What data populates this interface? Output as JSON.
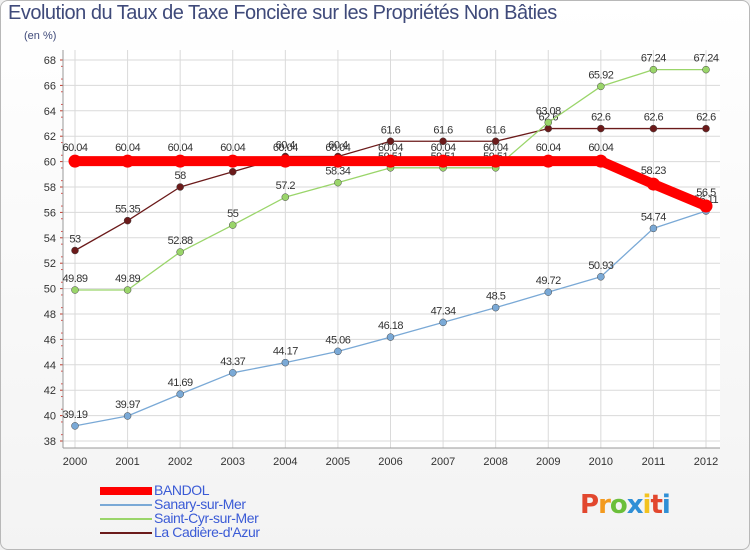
{
  "header": {
    "title": "Evolution du Taux de Taxe Foncière sur les Propriétés Non Bâties",
    "unit": "(en %)"
  },
  "brand": {
    "logo_text": "Proxiti"
  },
  "chart_data": {
    "type": "line",
    "title": "Evolution du Taux de Taxe Foncière sur les Propriétés Non Bâties",
    "ylabel": "(en %)",
    "xlabel": "",
    "ylim": [
      38,
      68
    ],
    "yticks": [
      38,
      40,
      42,
      44,
      46,
      48,
      50,
      52,
      54,
      56,
      58,
      60,
      62,
      64,
      66,
      68
    ],
    "x": [
      "2000",
      "2001",
      "2002",
      "2003",
      "2004",
      "2005",
      "2006",
      "2007",
      "2008",
      "2009",
      "2010",
      "2011",
      "2012"
    ],
    "grid": true,
    "legend_position": "bottom-left",
    "series": [
      {
        "name": "La Cadière-d'Azur",
        "color": "#6b1a1a",
        "values": [
          53,
          55.35,
          58,
          59.2,
          60.4,
          60.4,
          61.6,
          61.6,
          61.6,
          62.6,
          62.6,
          62.6,
          62.6
        ],
        "labels": [
          "53",
          "55.35",
          "58",
          "59.2",
          "60.4",
          "60.4",
          "61.6",
          "61.6",
          "61.6",
          "62.6",
          "62.6",
          "62.6",
          "62.6"
        ]
      },
      {
        "name": "Saint-Cyr-sur-Mer",
        "color": "#9ad56a",
        "values": [
          49.89,
          49.89,
          52.88,
          55,
          57.2,
          58.34,
          59.51,
          59.51,
          59.51,
          63.08,
          65.92,
          67.24,
          67.24
        ],
        "labels": [
          "49.89",
          "49.89",
          "52.88",
          "55",
          "57.2",
          "58.34",
          "59.51",
          "59.51",
          "59.51",
          "63.08",
          "65.92",
          "67.24",
          "67.24"
        ]
      },
      {
        "name": "Sanary-sur-Mer",
        "color": "#7aa9d6",
        "values": [
          39.19,
          39.97,
          41.69,
          43.37,
          44.17,
          45.06,
          46.18,
          47.34,
          48.5,
          49.72,
          50.93,
          54.74,
          56.11
        ],
        "labels": [
          "39.19",
          "39.97",
          "41.69",
          "43.37",
          "44.17",
          "45.06",
          "46.18",
          "47.34",
          "48.5",
          "49.72",
          "50.93",
          "54.74",
          "56.11"
        ]
      },
      {
        "name": "BANDOL",
        "color": "#ff0000",
        "values": [
          60.04,
          60.04,
          60.04,
          60.04,
          60.04,
          60.04,
          60.04,
          60.04,
          60.04,
          60.04,
          60.04,
          58.23,
          56.5
        ],
        "labels": [
          "60.04",
          "60.04",
          "60.04",
          "60.04",
          "60.04",
          "60.04",
          "60.04",
          "60.04",
          "60.04",
          "60.04",
          "60.04",
          "58.23",
          "56.5"
        ]
      }
    ],
    "legend_order": [
      "BANDOL",
      "Sanary-sur-Mer",
      "Saint-Cyr-sur-Mer",
      "La Cadière-d'Azur"
    ]
  }
}
